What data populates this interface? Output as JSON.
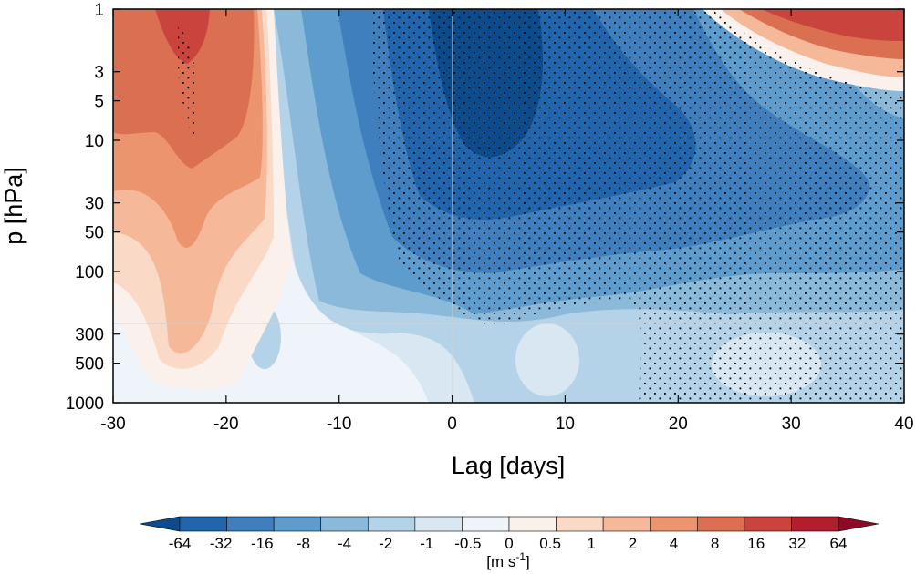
{
  "chart_data": {
    "type": "heatmap",
    "xlabel": "Lag [days]",
    "ylabel": "p [hPa]",
    "x_range": [
      -30,
      40
    ],
    "x_ticks": [
      -30,
      -20,
      -10,
      0,
      10,
      20,
      30,
      40
    ],
    "y_scale": "log",
    "y_range": [
      1000,
      1
    ],
    "y_ticks": [
      1,
      3,
      5,
      10,
      30,
      50,
      100,
      300,
      500,
      1000
    ],
    "colorbar": {
      "unit_base": "[m s",
      "unit_exp": "-1",
      "unit_close": "]",
      "labels": [
        "-64",
        "-32",
        "-16",
        "-8",
        "-4",
        "-2",
        "-1",
        "-0.5",
        "0",
        "0.5",
        "1",
        "2",
        "4",
        "8",
        "16",
        "32",
        "64"
      ],
      "colors": [
        "#0d4c8c",
        "#2166ac",
        "#3f7fbd",
        "#5d9ccd",
        "#8ab9da",
        "#b5d3e8",
        "#d8e7f2",
        "#eef4f9",
        "#fbf1ec",
        "#fbd9c7",
        "#f5b899",
        "#eb946d",
        "#db6f52",
        "#c8443c",
        "#b21f2c",
        "#8d0a26"
      ],
      "placement": "bottom"
    },
    "stippling": "significance"
  }
}
